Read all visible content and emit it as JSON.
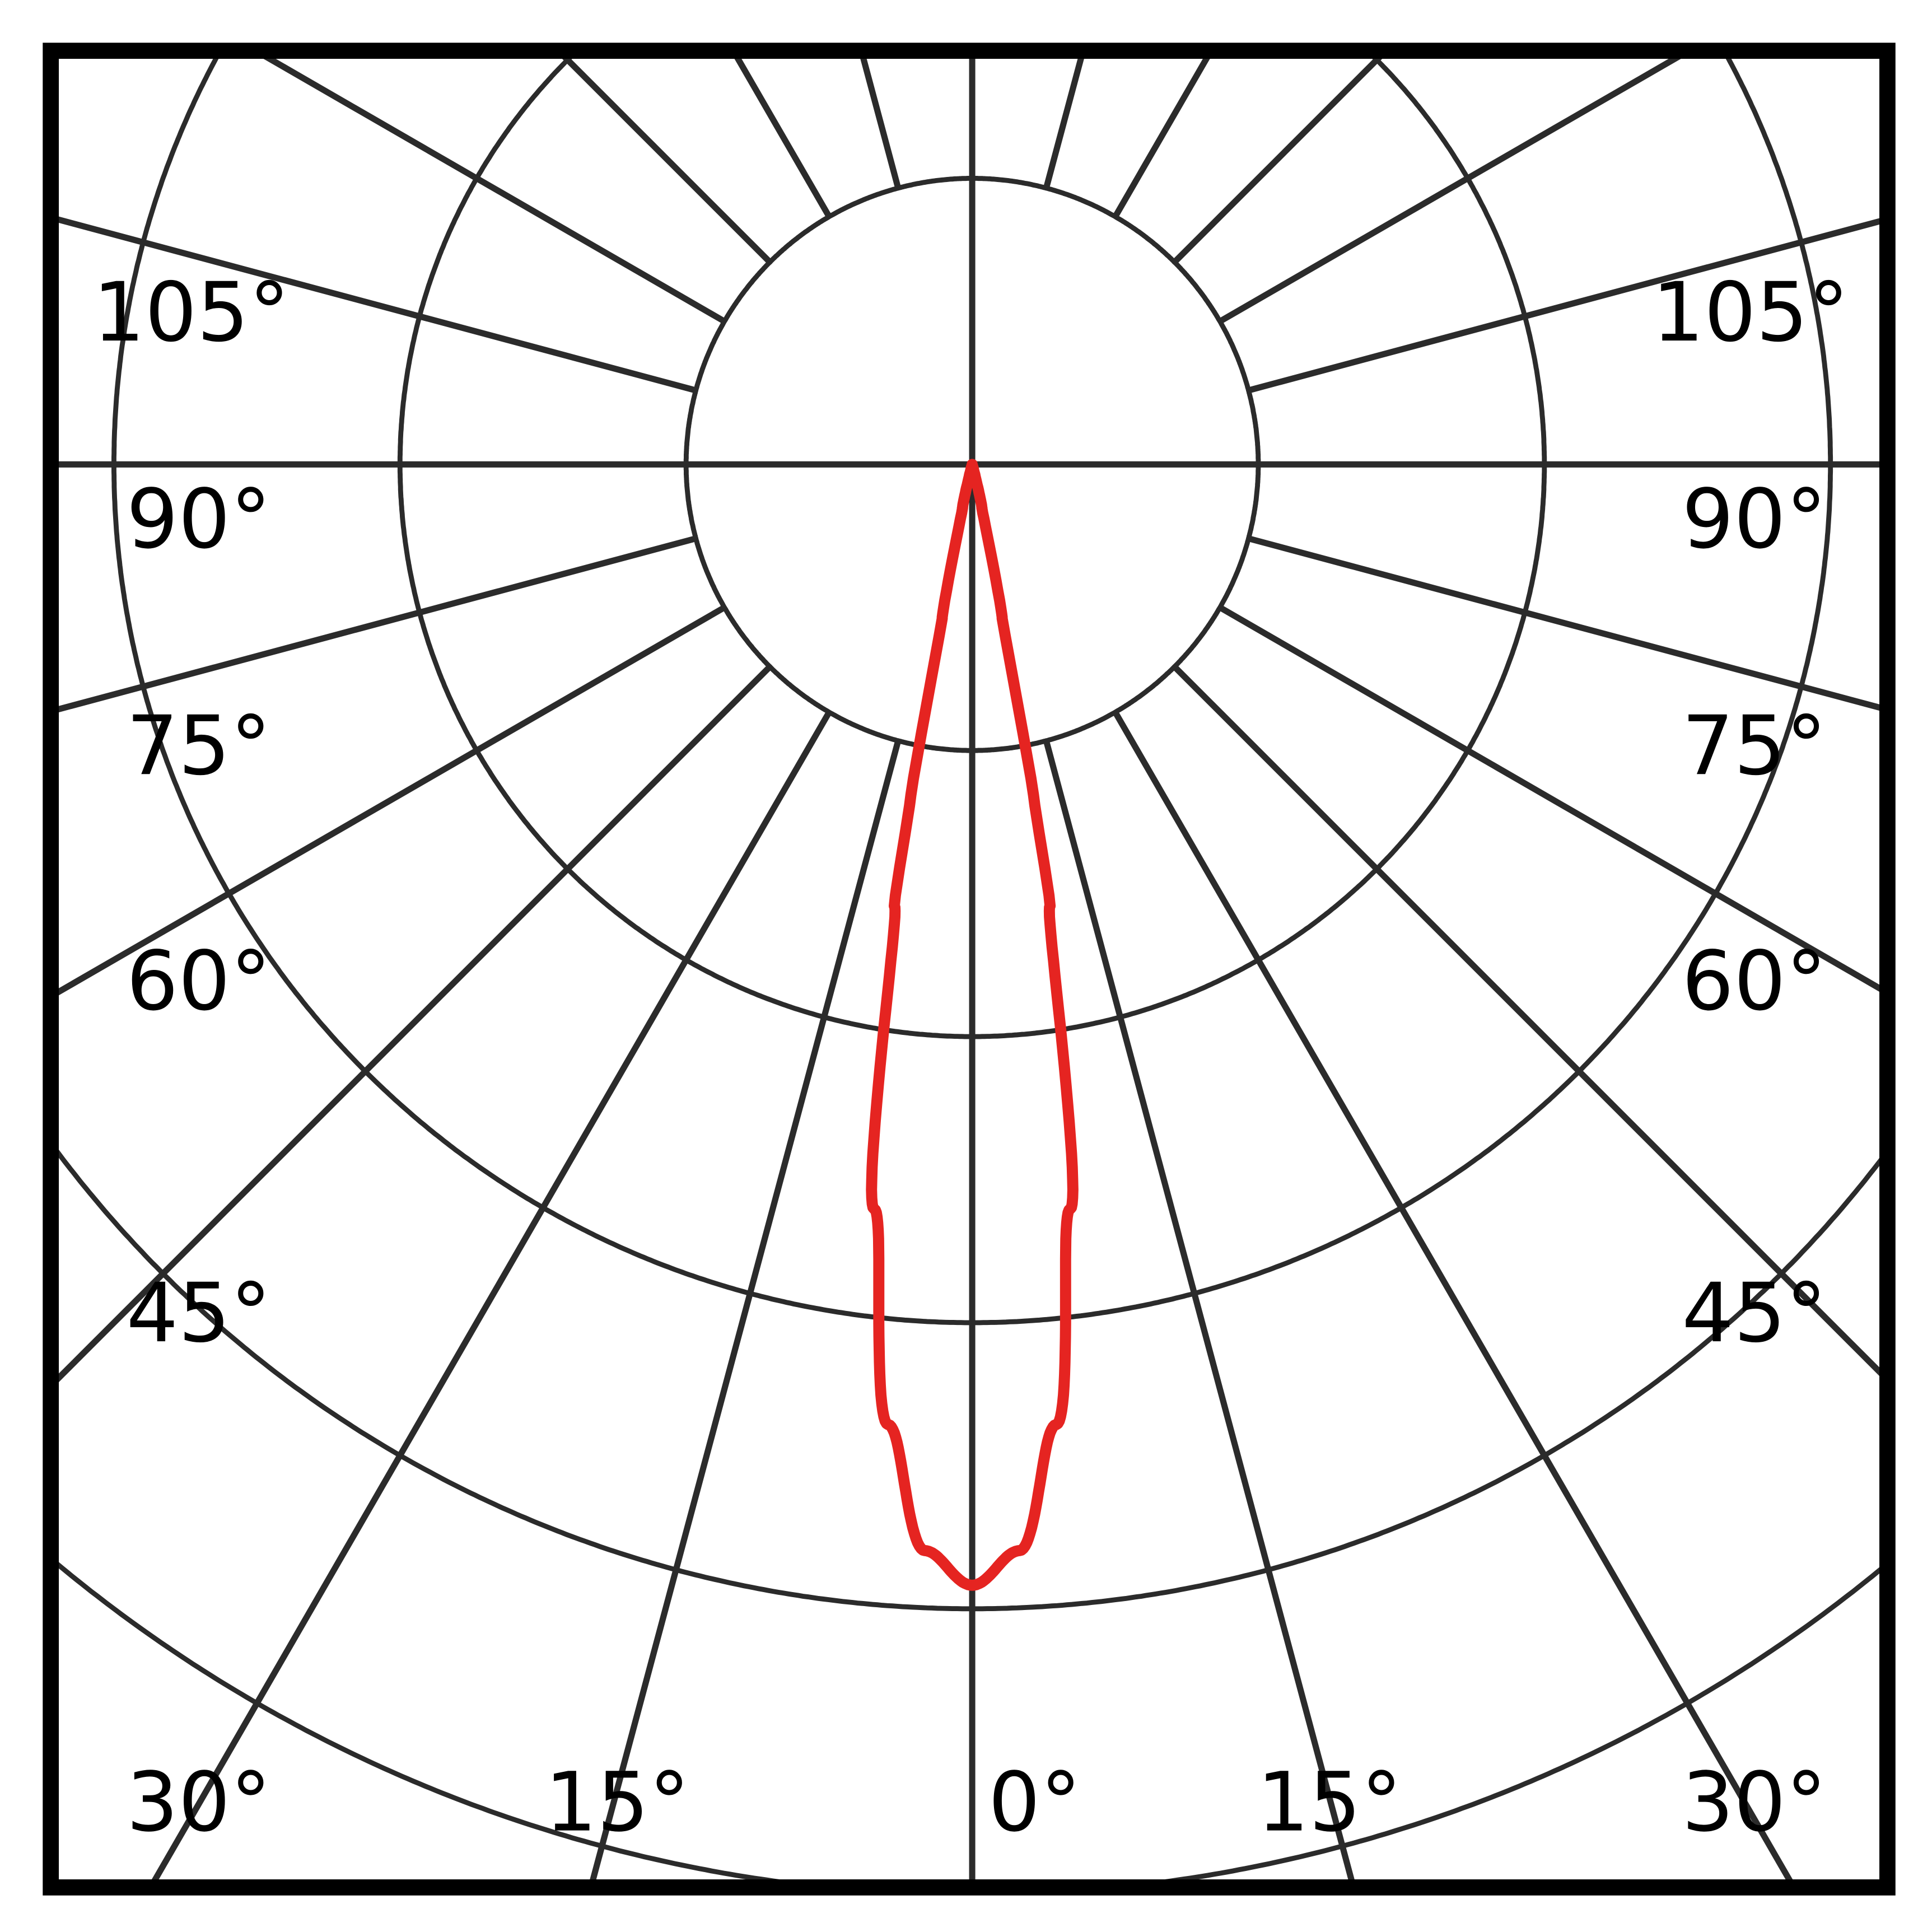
{
  "chart_data": {
    "type": "polar",
    "title": "",
    "angle_unit": "degrees",
    "angle_labels": {
      "left": [
        "105°",
        "90°",
        "75°",
        "60°",
        "45°",
        "30°"
      ],
      "bottom": [
        "15°",
        "0°",
        "15°"
      ],
      "right": [
        "105°",
        "90°",
        "75°",
        "60°",
        "45°",
        "30°"
      ]
    },
    "radial_grid_step_deg": 15,
    "rings": 5,
    "grid": true,
    "series": [
      {
        "angles": [
          0,
          2.5,
          5,
          7.5,
          10,
          10.5,
          11,
          12.5,
          15
        ],
        "relative_intensity": [
          1.0,
          0.97,
          0.86,
          0.67,
          0.4,
          0.3,
          0.14,
          0.04,
          0.0
        ],
        "symmetric": true
      }
    ],
    "colors": {
      "curve": "#e52421",
      "grid": "#2b2b2b",
      "frame": "#000000"
    }
  }
}
